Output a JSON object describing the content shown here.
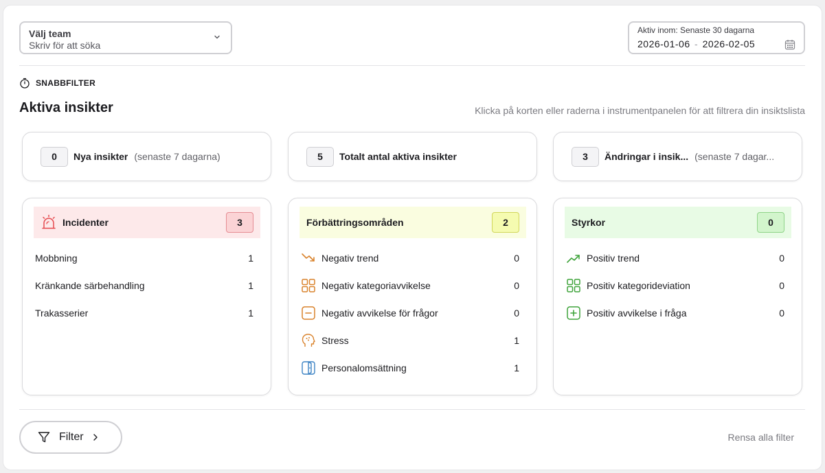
{
  "team_select": {
    "label": "Välj team",
    "placeholder": "Skriv för att söka"
  },
  "date_range": {
    "label": "Aktiv inom: Senaste 30 dagarna",
    "start": "2026-01-06",
    "separator": "-",
    "end": "2026-02-05"
  },
  "quick_filter": {
    "label": "SNABBFILTER"
  },
  "heading": {
    "title": "Aktiva insikter",
    "hint": "Klicka på korten eller raderna i instrumentpanelen för att filtrera din insiktslista"
  },
  "summary_cards": [
    {
      "count": "0",
      "title": "Nya insikter",
      "sub": "(senaste 7 dagarna)"
    },
    {
      "count": "5",
      "title": "Totalt antal aktiva insikter",
      "sub": ""
    },
    {
      "count": "3",
      "title": "Ändringar i insik...",
      "sub": "(senaste 7 dagar..."
    }
  ],
  "categories": {
    "incidents": {
      "title": "Incidenter",
      "count": "3",
      "bg": "#fde9ea",
      "count_bg": "#fbd3d5",
      "count_border": "#e58c93",
      "icon": "siren-icon",
      "icon_color": "#e5484d",
      "rows": [
        {
          "label": "Mobbning",
          "value": "1"
        },
        {
          "label": "Kränkande särbehandling",
          "value": "1"
        },
        {
          "label": "Trakasserier",
          "value": "1"
        }
      ]
    },
    "improvements": {
      "title": "Förbättringsområden",
      "count": "2",
      "bg": "#fafde0",
      "count_bg": "#f5fbb0",
      "count_border": "#d1d65a",
      "rows": [
        {
          "label": "Negativ trend",
          "value": "0",
          "icon": "trend-down-icon",
          "color": "#d9822b"
        },
        {
          "label": "Negativ kategoriavvikelse",
          "value": "0",
          "icon": "category-icon",
          "color": "#d9822b"
        },
        {
          "label": "Negativ avvikelse för frågor",
          "value": "0",
          "icon": "minus-square-icon",
          "color": "#d9822b"
        },
        {
          "label": "Stress",
          "value": "1",
          "icon": "head-icon",
          "color": "#d9822b"
        },
        {
          "label": "Personalomsättning",
          "value": "1",
          "icon": "door-icon",
          "color": "#3b82c4"
        }
      ]
    },
    "strengths": {
      "title": "Styrkor",
      "count": "0",
      "bg": "#e8fbe5",
      "count_bg": "#d2f5cc",
      "count_border": "#8fd488",
      "rows": [
        {
          "label": "Positiv trend",
          "value": "0",
          "icon": "trend-up-icon",
          "color": "#3ea33a"
        },
        {
          "label": "Positiv kategorideviation",
          "value": "0",
          "icon": "category-icon",
          "color": "#3ea33a"
        },
        {
          "label": "Positiv avvikelse i fråga",
          "value": "0",
          "icon": "plus-square-icon",
          "color": "#3ea33a"
        }
      ]
    }
  },
  "footer": {
    "filter_label": "Filter",
    "clear_label": "Rensa alla filter"
  }
}
